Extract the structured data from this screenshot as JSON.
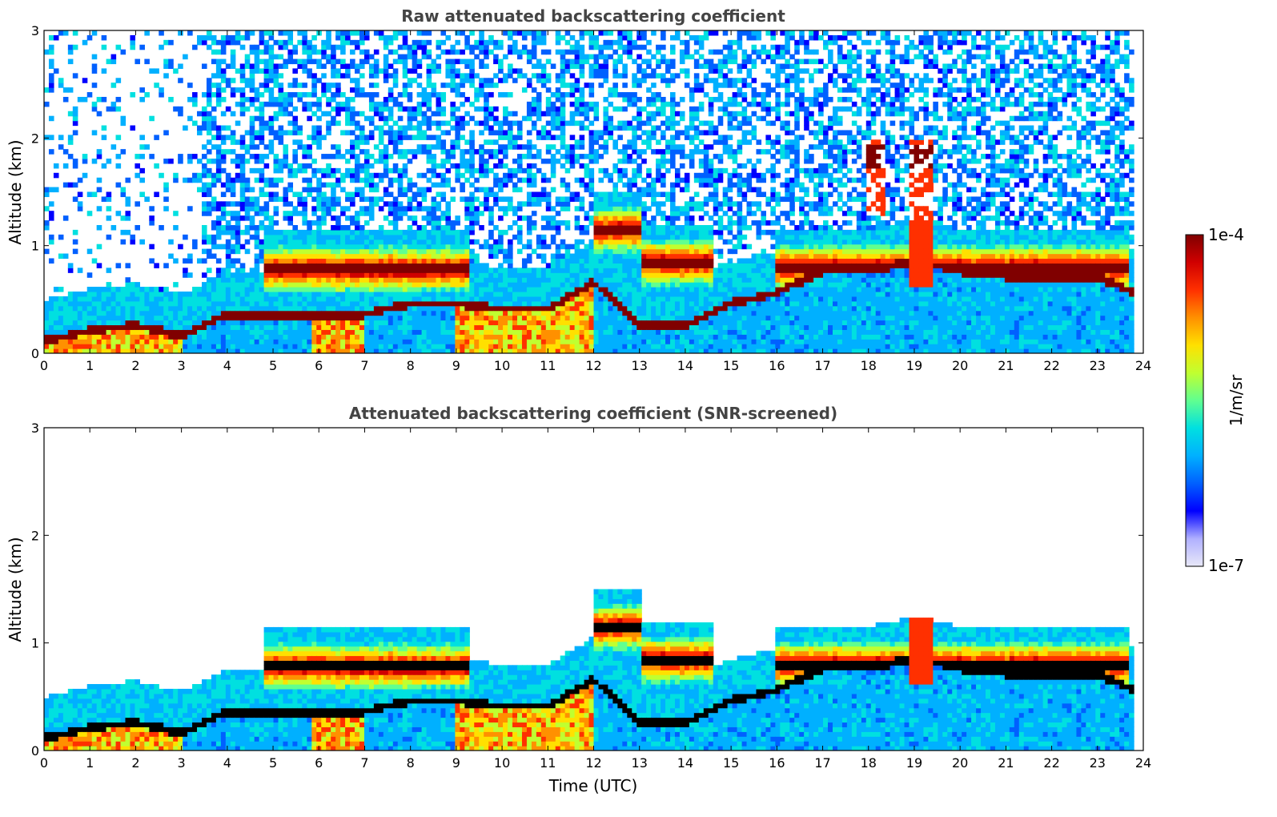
{
  "chart_data": [
    {
      "type": "heatmap",
      "title": "Raw attenuated backscattering coefficient",
      "xlabel": "",
      "ylabel": "Altitude (km)",
      "xlim": [
        0,
        24
      ],
      "ylim": [
        0,
        3
      ],
      "xticks": [
        "0",
        "1",
        "2",
        "3",
        "4",
        "5",
        "6",
        "7",
        "8",
        "9",
        "10",
        "11",
        "12",
        "13",
        "14",
        "15",
        "16",
        "17",
        "18",
        "19",
        "20",
        "21",
        "22",
        "23",
        "24"
      ],
      "yticks": [
        "0",
        "1",
        "2",
        "3"
      ],
      "screened": false,
      "layers": {
        "residual_layer_top_km": [
          [
            0,
            0.15
          ],
          [
            1,
            0.25
          ],
          [
            2,
            0.3
          ],
          [
            3,
            0.2
          ],
          [
            3.5,
            0.3
          ],
          [
            4,
            0.4
          ],
          [
            5,
            0.4
          ],
          [
            6,
            0.4
          ],
          [
            7,
            0.4
          ],
          [
            8,
            0.5
          ],
          [
            9,
            0.5
          ],
          [
            10,
            0.45
          ],
          [
            11,
            0.45
          ],
          [
            12,
            0.7
          ],
          [
            13,
            0.3
          ],
          [
            14,
            0.3
          ],
          [
            15,
            0.5
          ],
          [
            16,
            0.6
          ],
          [
            17,
            0.8
          ],
          [
            18,
            0.8
          ],
          [
            19,
            0.9
          ],
          [
            20,
            0.8
          ],
          [
            21,
            0.75
          ],
          [
            22,
            0.75
          ],
          [
            23,
            0.75
          ],
          [
            23.8,
            0.6
          ]
        ],
        "upper_layer_km": [
          [
            5,
            0.75
          ],
          [
            6,
            0.8
          ],
          [
            7,
            0.8
          ],
          [
            8,
            0.8
          ],
          [
            9,
            0.75
          ],
          [
            12.3,
            1.2
          ],
          [
            13,
            1.0
          ],
          [
            14,
            0.85
          ],
          [
            18,
            1.8
          ],
          [
            19.1,
            1.8
          ]
        ]
      },
      "colorbar_range": [
        "1e-7",
        "1e-4"
      ]
    },
    {
      "type": "heatmap",
      "title": "Attenuated backscattering coefficient (SNR-screened)",
      "xlabel": "Time (UTC)",
      "ylabel": "Altitude (km)",
      "xlim": [
        0,
        24
      ],
      "ylim": [
        0,
        3
      ],
      "xticks": [
        "0",
        "1",
        "2",
        "3",
        "4",
        "5",
        "6",
        "7",
        "8",
        "9",
        "10",
        "11",
        "12",
        "13",
        "14",
        "15",
        "16",
        "17",
        "18",
        "19",
        "20",
        "21",
        "22",
        "23",
        "24"
      ],
      "yticks": [
        "0",
        "1",
        "2",
        "3"
      ],
      "screened": true
    }
  ],
  "colorbar": {
    "max_label": "1e-4",
    "min_label": "1e-7",
    "unit_label": "1/m/sr",
    "colormap": [
      "#e8e8f8",
      "#b0b0ff",
      "#0000ff",
      "#0060ff",
      "#00b0ff",
      "#00e0e0",
      "#60ff90",
      "#c0ff30",
      "#ffe000",
      "#ff9000",
      "#ff3000",
      "#d00000",
      "#800000"
    ]
  }
}
